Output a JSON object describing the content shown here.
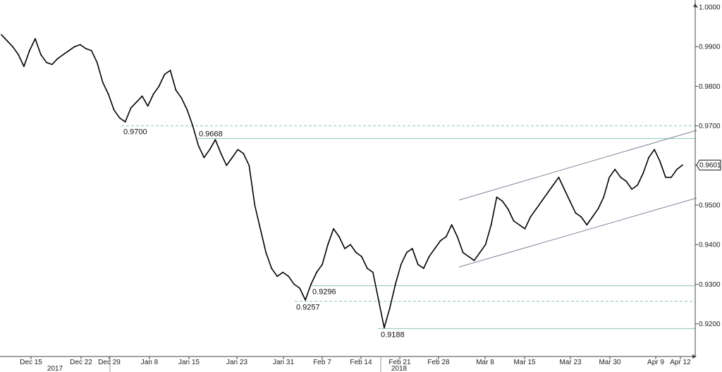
{
  "chart_data": {
    "type": "line",
    "title": "",
    "xlabel": "",
    "ylabel": "",
    "ylim": [
      0.913,
      1.002
    ],
    "y_ticks": [
      "1.0000",
      "0.9900",
      "0.9800",
      "0.9700",
      "0.9600",
      "0.9500",
      "0.9400",
      "0.9300",
      "0.9200"
    ],
    "x_ticks": [
      "Dec 15",
      "Dec 22",
      "Dec 29",
      "Jan 8",
      "Jan 15",
      "Jan 23",
      "Jan 31",
      "Feb 7",
      "Feb 14",
      "Feb 21",
      "Feb 28",
      "Mar 8",
      "Mar 15",
      "Mar 23",
      "Mar 30",
      "Apr 9",
      "Apr 12"
    ],
    "year_labels": [
      "2017",
      "2018"
    ],
    "last_price_label": "0.9601",
    "grid": false,
    "series": [
      {
        "values": [
          0.993,
          0.9915,
          0.99,
          0.988,
          0.985,
          0.989,
          0.992,
          0.988,
          0.986,
          0.9855,
          0.987,
          0.988,
          0.989,
          0.99,
          0.9905,
          0.9895,
          0.989,
          0.986,
          0.981,
          0.978,
          0.974,
          0.972,
          0.971,
          0.9745,
          0.976,
          0.9775,
          0.975,
          0.978,
          0.98,
          0.983,
          0.984,
          0.979,
          0.977,
          0.974,
          0.97,
          0.965,
          0.962,
          0.964,
          0.9665,
          0.963,
          0.96,
          0.962,
          0.964,
          0.963,
          0.96,
          0.95,
          0.944,
          0.938,
          0.934,
          0.932,
          0.933,
          0.932,
          0.93,
          0.929,
          0.926,
          0.93,
          0.933,
          0.935,
          0.94,
          0.944,
          0.942,
          0.939,
          0.94,
          0.938,
          0.937,
          0.934,
          0.933,
          0.926,
          0.919,
          0.924,
          0.93,
          0.935,
          0.938,
          0.939,
          0.935,
          0.934,
          0.937,
          0.939,
          0.941,
          0.942,
          0.945,
          0.942,
          0.938,
          0.937,
          0.936,
          0.938,
          0.94,
          0.945,
          0.952,
          0.951,
          0.949,
          0.946,
          0.945,
          0.944,
          0.947,
          0.949,
          0.951,
          0.953,
          0.955,
          0.957,
          0.954,
          0.951,
          0.948,
          0.947,
          0.945,
          0.947,
          0.949,
          0.952,
          0.957,
          0.959,
          0.957,
          0.956,
          0.954,
          0.955,
          0.958,
          0.962,
          0.964,
          0.961,
          0.957,
          0.957,
          0.959,
          0.9601
        ]
      }
    ],
    "horizontal_levels": [
      {
        "value": 0.97,
        "style": "dashed",
        "label": "0.9700"
      },
      {
        "value": 0.9668,
        "style": "solid",
        "label": "0.9668"
      },
      {
        "value": 0.9296,
        "style": "solid",
        "label": "0.9296"
      },
      {
        "value": 0.9257,
        "style": "dashed",
        "label": "0.9257"
      },
      {
        "value": 0.9188,
        "style": "solid",
        "label": "0.9188"
      }
    ],
    "colors": {
      "line": "#000000",
      "levels": "#8cc6b6",
      "channel": "#7a8796",
      "axis": "#444444"
    }
  }
}
